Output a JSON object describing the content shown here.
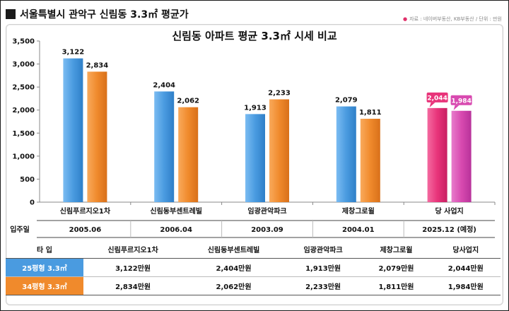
{
  "header": {
    "title": "서울특별시 관악구 신림동 3.3㎡ 평균가",
    "source": "자료 : 네이버부동산, KB부동산 / 단위 : 만원"
  },
  "colors": {
    "blue": "#4a9be0",
    "orange": "#f08a2c",
    "pink": "#e8347a",
    "magenta": "#d84ab0"
  },
  "chart_data": {
    "type": "bar",
    "title": "신림동 아파트 평균 3.3㎡ 시세 비교",
    "categories": [
      "신림푸르지오1차",
      "신림동부센트레빌",
      "임광관악파크",
      "제창그로윌",
      "당 사업지"
    ],
    "series": [
      {
        "values": [
          3122,
          2404,
          1913,
          2079,
          2044
        ]
      },
      {
        "values": [
          2834,
          2062,
          2233,
          1811,
          1984
        ]
      }
    ],
    "data_labels": [
      [
        "3,122",
        "2,404",
        "1,913",
        "2,079",
        "2,044"
      ],
      [
        "2,834",
        "2,062",
        "2,233",
        "1,811",
        "1,984"
      ]
    ],
    "ylim": [
      0,
      3500
    ],
    "yticks": [
      0,
      500,
      1000,
      1500,
      2000,
      2500,
      3000,
      3500
    ],
    "ytick_labels": [
      "0",
      "500",
      "1,000",
      "1,500",
      "2,000",
      "2,500",
      "3,000",
      "3,500"
    ],
    "grid": false,
    "highlight_category": "당 사업지"
  },
  "move_in": {
    "label": "입주일",
    "dates": [
      "2005.06",
      "2006.04",
      "2003.09",
      "2004.01",
      "2025.12 (예정)"
    ]
  },
  "table": {
    "type_label": "타 입",
    "columns": [
      "신림푸르지오1차",
      "신림동부센트레빌",
      "임광관악파크",
      "제창그로윌",
      "당사업지"
    ],
    "rows": [
      {
        "label": "25평형 3.3㎡",
        "values": [
          "3,122만원",
          "2,404만원",
          "1,913만원",
          "2,079만원",
          "2,044만원"
        ]
      },
      {
        "label": "34평형 3.3㎡",
        "values": [
          "2,834만원",
          "2,062만원",
          "2,233만원",
          "1,811만원",
          "1,984만원"
        ]
      }
    ]
  }
}
